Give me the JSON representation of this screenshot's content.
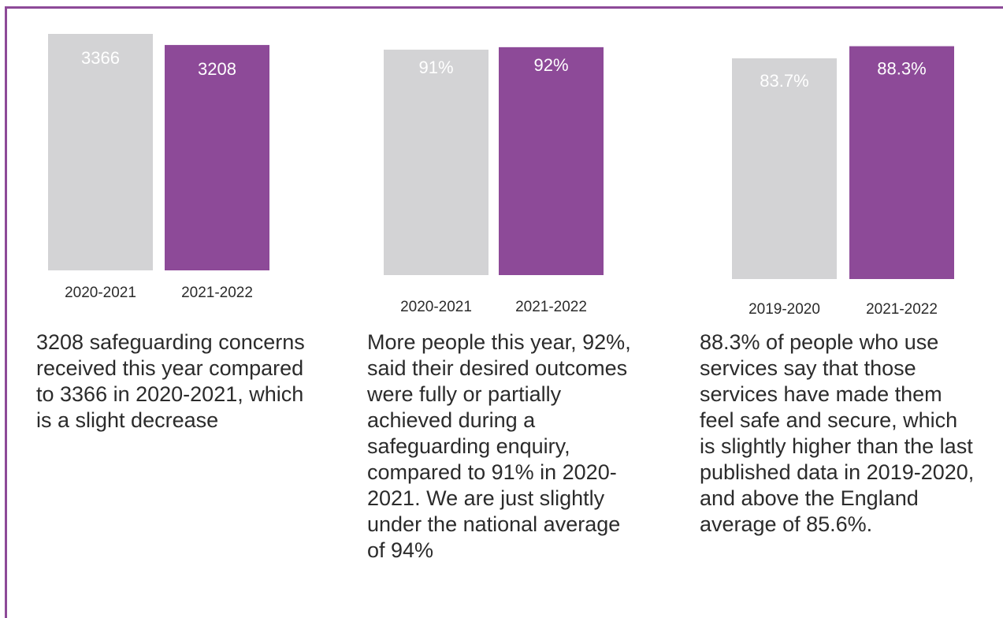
{
  "colors": {
    "previous": "#d3d3d5",
    "current": "#8d4a98",
    "frame": "#8d4a98",
    "text": "#2b2b2b"
  },
  "chart_data": [
    {
      "type": "bar",
      "categories": [
        "2020-2021",
        "2021-2022"
      ],
      "values": [
        3366,
        3208
      ],
      "data_labels": [
        "3366",
        "3208"
      ],
      "colors": [
        "#d3d3d5",
        "#8d4a98"
      ],
      "caption": "3208 safeguarding concerns received this year compared to 3366 in 2020-2021, which is a slight decrease"
    },
    {
      "type": "bar",
      "categories": [
        "2020-2021",
        "2021-2022"
      ],
      "values": [
        91,
        92
      ],
      "data_labels": [
        "91%",
        "92%"
      ],
      "colors": [
        "#d3d3d5",
        "#8d4a98"
      ],
      "caption": "More people this year, 92%, said their desired outcomes were fully or partially achieved during a safeguarding enquiry, compared to 91% in 2020-2021. We are just slightly under the national average of 94%"
    },
    {
      "type": "bar",
      "categories": [
        "2019-2020",
        "2021-2022"
      ],
      "values": [
        83.7,
        88.3
      ],
      "data_labels": [
        "83.7%",
        "88.3%"
      ],
      "colors": [
        "#d3d3d5",
        "#8d4a98"
      ],
      "caption": "88.3% of people who use services say that those services have made them feel safe and secure, which is slightly higher than the last published data in 2019-2020, and above the England average of 85.6%."
    }
  ]
}
